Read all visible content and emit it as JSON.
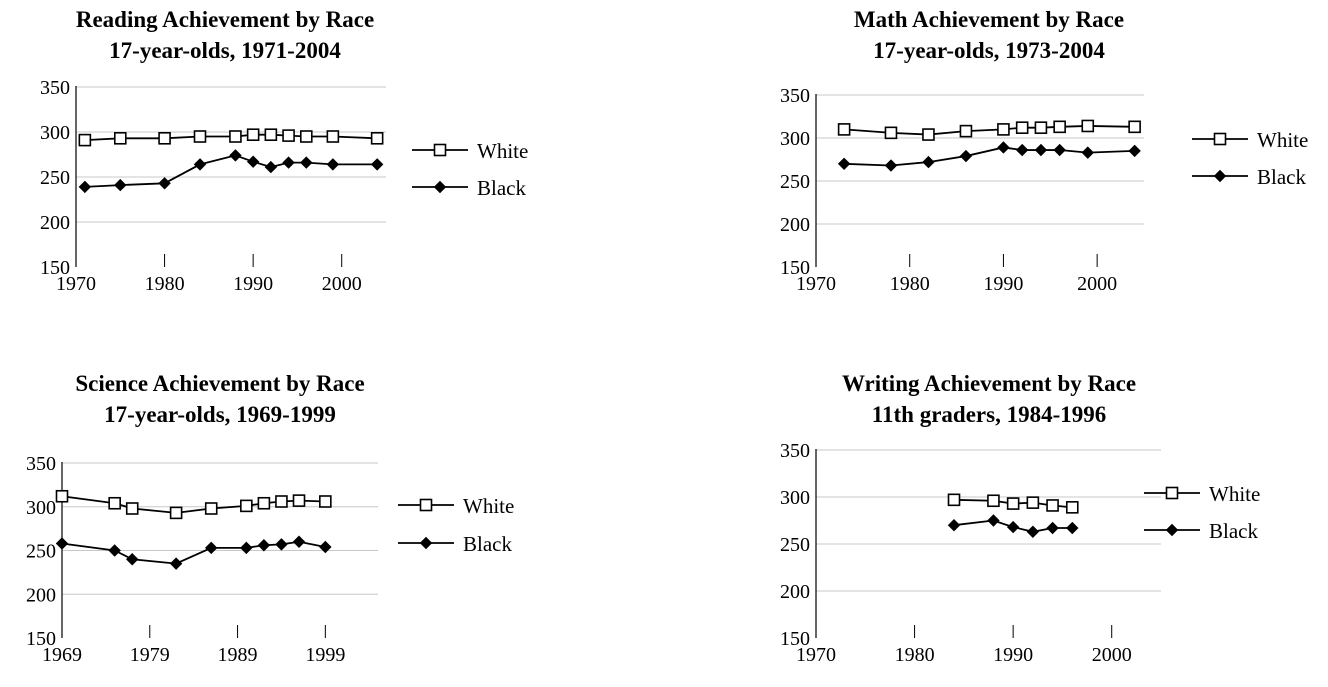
{
  "chart_data": [
    {
      "type": "line",
      "title": "Reading Achievement by Race",
      "subtitle": "17-year-olds, 1971-2004",
      "xlim": [
        1970,
        2005
      ],
      "ylim": [
        150,
        350
      ],
      "xticks": [
        1970,
        1980,
        1990,
        2000
      ],
      "yticks": [
        150,
        200,
        250,
        300,
        350
      ],
      "grid": "horizontal",
      "legend": "right",
      "series": [
        {
          "name": "White",
          "marker": "open-square",
          "x": [
            1971,
            1975,
            1980,
            1984,
            1988,
            1990,
            1992,
            1994,
            1996,
            1999,
            2004
          ],
          "y": [
            291,
            293,
            293,
            295,
            295,
            297,
            297,
            296,
            295,
            295,
            293
          ]
        },
        {
          "name": "Black",
          "marker": "filled-diamond",
          "x": [
            1971,
            1975,
            1980,
            1984,
            1988,
            1990,
            1992,
            1994,
            1996,
            1999,
            2004
          ],
          "y": [
            239,
            241,
            243,
            264,
            274,
            267,
            261,
            266,
            266,
            264,
            264
          ]
        }
      ]
    },
    {
      "type": "line",
      "title": "Math Achievement by Race",
      "subtitle": "17-year-olds, 1973-2004",
      "xlim": [
        1970,
        2005
      ],
      "ylim": [
        150,
        350
      ],
      "xticks": [
        1970,
        1980,
        1990,
        2000
      ],
      "yticks": [
        150,
        200,
        250,
        300,
        350
      ],
      "grid": "horizontal",
      "legend": "right",
      "series": [
        {
          "name": "White",
          "marker": "open-square",
          "x": [
            1973,
            1978,
            1982,
            1986,
            1990,
            1992,
            1994,
            1996,
            1999,
            2004
          ],
          "y": [
            310,
            306,
            304,
            308,
            310,
            312,
            312,
            313,
            314,
            313
          ]
        },
        {
          "name": "Black",
          "marker": "filled-diamond",
          "x": [
            1973,
            1978,
            1982,
            1986,
            1990,
            1992,
            1994,
            1996,
            1999,
            2004
          ],
          "y": [
            270,
            268,
            272,
            279,
            289,
            286,
            286,
            286,
            283,
            285
          ]
        }
      ]
    },
    {
      "type": "line",
      "title": "Science Achievement by Race",
      "subtitle": "17-year-olds, 1969-1999",
      "xlim": [
        1969,
        2005
      ],
      "ylim": [
        150,
        350
      ],
      "xticks": [
        1969,
        1979,
        1989,
        1999
      ],
      "yticks": [
        150,
        200,
        250,
        300,
        350
      ],
      "grid": "horizontal",
      "legend": "right",
      "series": [
        {
          "name": "White",
          "marker": "open-square",
          "x": [
            1969,
            1975,
            1977,
            1982,
            1986,
            1990,
            1992,
            1994,
            1996,
            1999
          ],
          "y": [
            312,
            304,
            298,
            293,
            298,
            301,
            304,
            306,
            307,
            306
          ]
        },
        {
          "name": "Black",
          "marker": "filled-diamond",
          "x": [
            1969,
            1975,
            1977,
            1982,
            1986,
            1990,
            1992,
            1994,
            1996,
            1999
          ],
          "y": [
            258,
            250,
            240,
            235,
            253,
            253,
            256,
            257,
            260,
            254
          ]
        }
      ]
    },
    {
      "type": "line",
      "title": "Writing Achievement by Race",
      "subtitle": "11th graders, 1984-1996",
      "xlim": [
        1970,
        2005
      ],
      "ylim": [
        150,
        350
      ],
      "xticks": [
        1970,
        1980,
        1990,
        2000
      ],
      "yticks": [
        150,
        200,
        250,
        300,
        350
      ],
      "grid": "horizontal",
      "legend": "right",
      "series": [
        {
          "name": "White",
          "marker": "open-square",
          "x": [
            1984,
            1988,
            1990,
            1992,
            1994,
            1996
          ],
          "y": [
            297,
            296,
            293,
            294,
            291,
            289
          ]
        },
        {
          "name": "Black",
          "marker": "filled-diamond",
          "x": [
            1984,
            1988,
            1990,
            1992,
            1994,
            1996
          ],
          "y": [
            270,
            275,
            268,
            263,
            267,
            267
          ]
        }
      ]
    }
  ]
}
